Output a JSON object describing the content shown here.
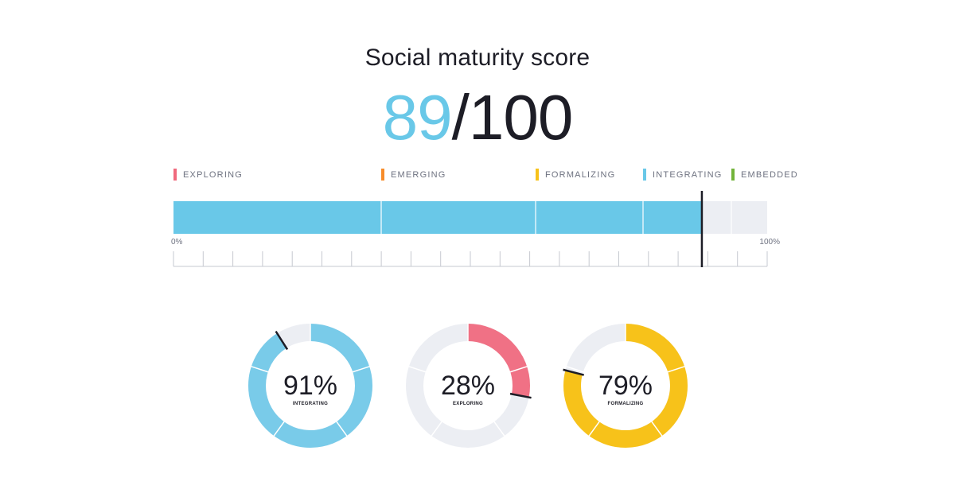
{
  "header": {
    "title": "Social maturity score",
    "score_value": "89",
    "score_max": "/100"
  },
  "chart_data": [
    {
      "type": "bar",
      "orientation": "horizontal",
      "value": 89,
      "xlim": [
        0,
        100
      ],
      "tick_labels": {
        "min": "0%",
        "max": "100%"
      },
      "fill_color": "#69c8e8",
      "track_color": "#eceef3",
      "stages": [
        {
          "name": "EXPLORING",
          "color": "#f0697d"
        },
        {
          "name": "EMERGING",
          "color": "#f78c2a"
        },
        {
          "name": "FORMALIZING",
          "color": "#f7c21a"
        },
        {
          "name": "INTEGRATING",
          "color": "#69c8e8"
        },
        {
          "name": "EMBEDDED",
          "color": "#72b33a"
        }
      ]
    },
    {
      "type": "pie",
      "style": "donut",
      "items": [
        {
          "value": 91,
          "pct_label": "91%",
          "label": "INTEGRATING",
          "color": "#79cbe9"
        },
        {
          "value": 28,
          "pct_label": "28%",
          "label": "EXPLORING",
          "color": "#f07185"
        },
        {
          "value": 79,
          "pct_label": "79%",
          "label": "FORMALIZING",
          "color": "#f7c21a"
        }
      ],
      "track_color": "#eceef3"
    }
  ]
}
